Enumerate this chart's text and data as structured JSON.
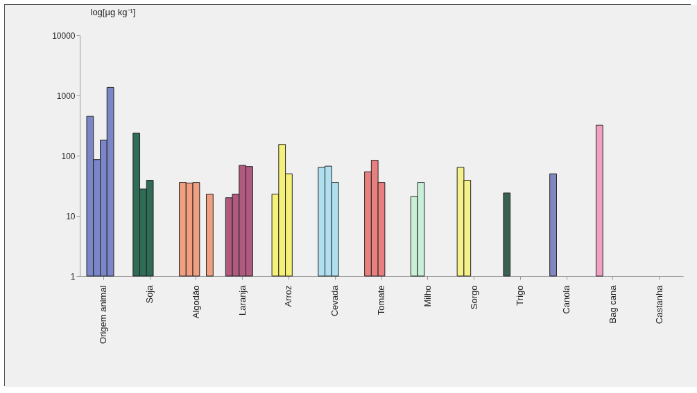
{
  "chart_data": {
    "type": "bar",
    "ylabel": "log[µg kg⁻¹]",
    "categories": [
      "Origem animal",
      "Soja",
      "Algodão",
      "Laranja",
      "Arroz",
      "Cevada",
      "Tomate",
      "Milho",
      "Sorgo",
      "Trigo",
      "Canola",
      "Bag cana",
      "Castanha"
    ],
    "log": "y",
    "ylim": [
      1,
      10000
    ],
    "yticks": [
      1,
      10,
      100,
      1000,
      10000
    ],
    "series": [
      {
        "colors": [
          "#7b86c8",
          "#2f6b55",
          "#f0a080",
          "#b05a80",
          "#f5f07a",
          "#b0e0f0",
          "#e88080",
          "#c8f0d8",
          "#f5f08a",
          "#3a6050",
          "#8088c0",
          "#f0a0c0",
          null
        ],
        "values": [
          450,
          238,
          36,
          20,
          23,
          64,
          54,
          21,
          64,
          24,
          50,
          320,
          null
        ]
      },
      {
        "colors": [
          "#7b86c8",
          "#2f6b55",
          "#f0a080",
          "#b05a80",
          "#f5f07a",
          "#b0e0f0",
          "#e88080",
          "#c8f0d8",
          "#f5f08a",
          null,
          null,
          null,
          null
        ],
        "values": [
          86,
          28,
          35,
          23,
          154,
          67,
          84,
          36,
          39,
          null,
          null,
          null,
          null
        ]
      },
      {
        "colors": [
          "#7b86c8",
          "#2f6b55",
          "#f0a080",
          "#b05a80",
          "#f5f07a",
          "#b0e0f0",
          "#e88080",
          null,
          null,
          null,
          null,
          null,
          null
        ],
        "values": [
          182,
          39,
          36,
          69,
          50,
          36,
          36,
          null,
          null,
          null,
          null,
          null,
          null
        ]
      },
      {
        "colors": [
          "#7b86c8",
          null,
          null,
          "#b05a80",
          null,
          null,
          null,
          null,
          null,
          null,
          null,
          null,
          null
        ],
        "values": [
          1360,
          null,
          null,
          66,
          null,
          null,
          null,
          null,
          null,
          null,
          null,
          null,
          null
        ]
      },
      {
        "colors": [
          null,
          null,
          "#f0a080",
          null,
          null,
          null,
          null,
          null,
          null,
          null,
          null,
          null,
          null
        ],
        "values": [
          null,
          null,
          23,
          null,
          null,
          null,
          null,
          null,
          null,
          null,
          null,
          null,
          null
        ]
      }
    ]
  }
}
